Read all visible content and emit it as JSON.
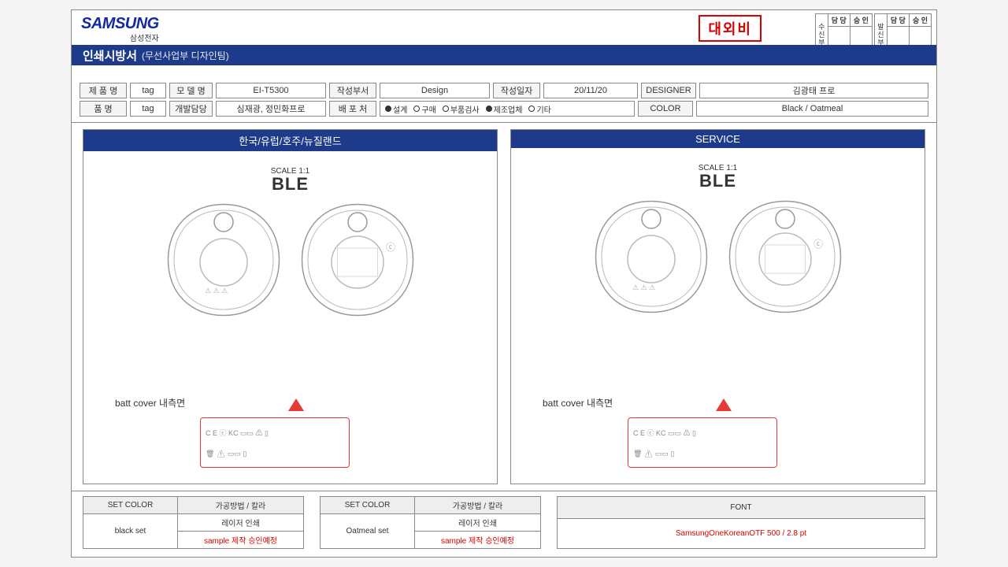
{
  "brand": {
    "name": "SAMSUNG",
    "sub": "삼성전자"
  },
  "title": {
    "main": "인쇄시방서",
    "sub": "(무선사업부 디자인팀)"
  },
  "stamp": "대외비",
  "approval": {
    "left_label": "수신부서",
    "right_label": "발신부서",
    "cols": [
      "담 당",
      "승 인"
    ]
  },
  "meta": {
    "row1": {
      "c1_lbl": "제 품 명",
      "c1_val": "tag",
      "c2_lbl": "모 델 명",
      "c2_val": "EI-T5300",
      "c3_lbl": "작성부서",
      "c3_val": "Design",
      "c4_lbl": "작성일자",
      "c4_val": "20/11/20",
      "c5_lbl": "DESIGNER",
      "c5_val": "김광태 프로"
    },
    "row2": {
      "c1_lbl": "품    명",
      "c1_val": "tag",
      "c2_lbl": "개발담당",
      "c2_val": "심재광, 정민화프로",
      "c3_lbl": "배 포 처",
      "options": [
        "설계",
        "구매",
        "부품검사",
        "제조업체",
        "기타"
      ],
      "filled": [
        true,
        false,
        false,
        true,
        false
      ],
      "c5_lbl": "COLOR",
      "c5_val": "Black / Oatmeal"
    }
  },
  "panels": {
    "left_title": "한국/유럽/호주/뉴질랜드",
    "right_title": "SERVICE",
    "scale": "SCALE 1:1",
    "ble": "BLE",
    "batt_label": "batt cover 내측면",
    "callout_row1": "C E  ⓒ KC ▭▭  ⚠  ▯",
    "callout_row2": "🗑  ⚠  ▭▭  ▯"
  },
  "footer": {
    "t1": {
      "h1": "SET COLOR",
      "h2": "가공방법 / 칼라",
      "set": "black set",
      "r1": "레이저 인쇄",
      "r2": "sample 제작 승인예정"
    },
    "t2": {
      "h1": "SET COLOR",
      "h2": "가공방법 / 칼라",
      "set": "Oatmeal set",
      "r1": "레이저 인쇄",
      "r2": "sample 제작 승인예정"
    },
    "font": {
      "h": "FONT",
      "v": "SamsungOneKoreanOTF 500 / 2.8 pt"
    }
  },
  "colors": {
    "brand": "#1428a0",
    "bar": "#1e3a8a",
    "stamp": "#d90000",
    "arrow": "#e53935"
  }
}
